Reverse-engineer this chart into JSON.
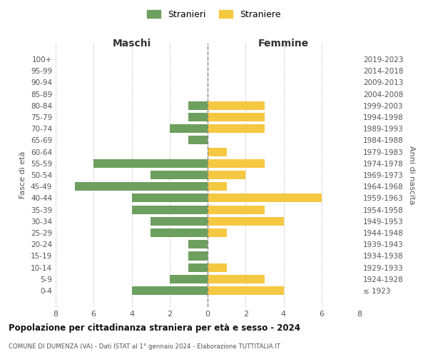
{
  "age_groups": [
    "100+",
    "95-99",
    "90-94",
    "85-89",
    "80-84",
    "75-79",
    "70-74",
    "65-69",
    "60-64",
    "55-59",
    "50-54",
    "45-49",
    "40-44",
    "35-39",
    "30-34",
    "25-29",
    "20-24",
    "15-19",
    "10-14",
    "5-9",
    "0-4"
  ],
  "birth_years": [
    "≤ 1923",
    "1924-1928",
    "1929-1933",
    "1934-1938",
    "1939-1943",
    "1944-1948",
    "1949-1953",
    "1954-1958",
    "1959-1963",
    "1964-1968",
    "1969-1973",
    "1974-1978",
    "1979-1983",
    "1984-1988",
    "1989-1993",
    "1994-1998",
    "1999-2003",
    "2004-2008",
    "2009-2013",
    "2014-2018",
    "2019-2023"
  ],
  "males": [
    0,
    0,
    0,
    0,
    1,
    1,
    2,
    1,
    0,
    6,
    3,
    7,
    4,
    4,
    3,
    3,
    1,
    1,
    1,
    2,
    4
  ],
  "females": [
    0,
    0,
    0,
    0,
    3,
    3,
    3,
    0,
    1,
    3,
    2,
    1,
    6,
    3,
    4,
    1,
    0,
    0,
    1,
    3,
    4
  ],
  "male_color": "#6d9f5e",
  "female_color": "#f5c842",
  "title": "Popolazione per cittadinanza straniera per età e sesso - 2024",
  "subtitle": "COMUNE DI DUMENZA (VA) - Dati ISTAT al 1° gennaio 2024 - Elaborazione TUTTITALIA.IT",
  "legend_male": "Stranieri",
  "legend_female": "Straniere",
  "xlabel_left": "Maschi",
  "xlabel_right": "Femmine",
  "ylabel_left": "Fasce di età",
  "ylabel_right": "Anni di nascita",
  "xlim": 8,
  "background_color": "#ffffff",
  "grid_color": "#cccccc"
}
